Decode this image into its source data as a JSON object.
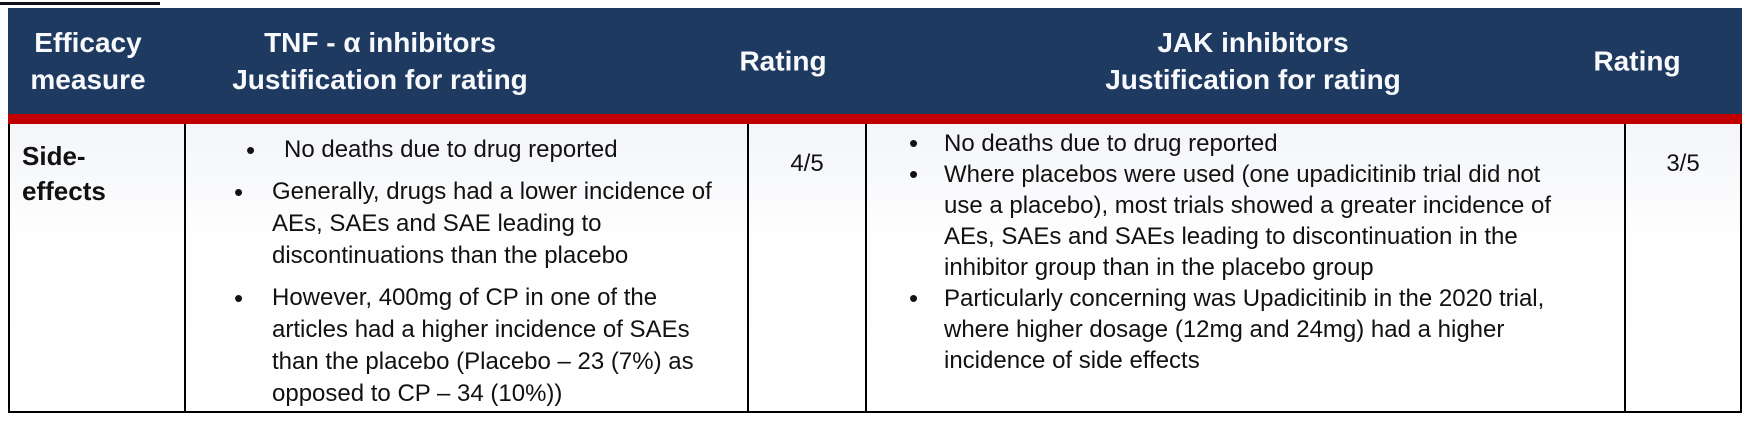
{
  "theme": {
    "header_bg": "#1f3a60",
    "divider_red": "#c00000",
    "border_color": "#000000",
    "header_text": "#f7f9fc"
  },
  "header": {
    "efficacy": "Efficacy\nmeasure",
    "tnf_line1": "TNF - α inhibitors",
    "tnf_line2": "Justification for rating",
    "rating_left": "Rating",
    "jak_line1": "JAK inhibitors",
    "jak_line2": "Justification for rating",
    "rating_right": "Rating"
  },
  "row": {
    "measure": "Side-\neffects",
    "tnf_points": [
      "No deaths due to drug reported",
      "Generally, drugs had a lower incidence of AEs, SAEs and SAE leading to discontinuations than the placebo",
      "However, 400mg of CP in one of the articles had a higher incidence of SAEs than the placebo (Placebo – 23 (7%) as opposed to CP – 34 (10%))"
    ],
    "tnf_rating": "4/5",
    "jak_points": [
      "No deaths due to drug reported",
      "Where placebos were used (one upadicitinib trial did not use a placebo), most trials showed a greater incidence of AEs, SAEs and SAEs leading to discontinuation in the inhibitor group than in the placebo group",
      "Particularly concerning was Upadicitinib in the 2020 trial, where higher dosage (12mg and 24mg) had a higher incidence of side effects"
    ],
    "jak_rating": "3/5"
  }
}
